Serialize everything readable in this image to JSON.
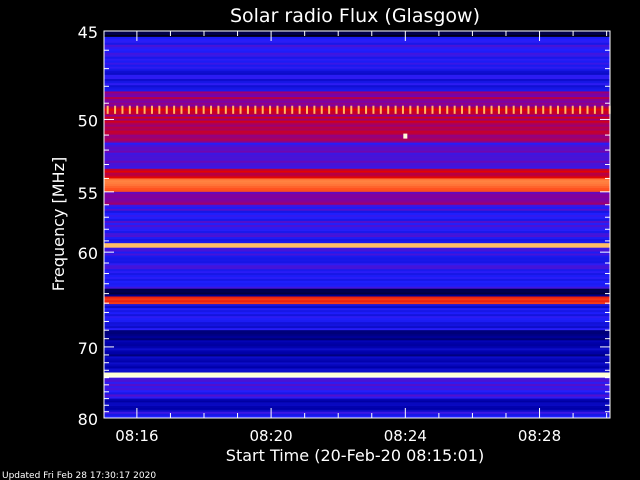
{
  "chart_data": {
    "type": "heatmap",
    "title": "Solar radio Flux (Glasgow)",
    "xlabel": "Start Time (20-Feb-20 08:15:01)",
    "ylabel": "Frequency [MHz]",
    "x_ticks": [
      "08:16",
      "08:20",
      "08:24",
      "08:28"
    ],
    "x_tick_minutes": [
      16,
      20,
      24,
      28
    ],
    "x_range_minutes": [
      15.02,
      30.1
    ],
    "y_ticks": [
      45,
      50,
      55,
      60,
      70,
      80
    ],
    "y_range": [
      45,
      80
    ],
    "y_scale": "reciprocal",
    "colormap": [
      "#000010",
      "#0000a8",
      "#2020ff",
      "#8000a0",
      "#e00000",
      "#ff5020",
      "#ffff90",
      "#ffffff"
    ],
    "bands": [
      {
        "f_start": 45.0,
        "f_end": 45.3,
        "level": 0.05
      },
      {
        "f_start": 45.3,
        "f_end": 47.0,
        "level": 0.3
      },
      {
        "f_start": 47.0,
        "f_end": 48.3,
        "level": 0.25
      },
      {
        "f_start": 48.3,
        "f_end": 49.2,
        "level": 0.45
      },
      {
        "f_start": 49.2,
        "f_end": 49.7,
        "level": 0.55
      },
      {
        "f_start": 49.7,
        "f_end": 51.5,
        "level": 0.5
      },
      {
        "f_start": 51.5,
        "f_end": 53.3,
        "level": 0.35
      },
      {
        "f_start": 53.3,
        "f_end": 54.0,
        "level": 0.55
      },
      {
        "f_start": 54.0,
        "f_end": 55.0,
        "level": 0.7
      },
      {
        "f_start": 55.0,
        "f_end": 56.0,
        "level": 0.45
      },
      {
        "f_start": 56.0,
        "f_end": 59.2,
        "level": 0.3
      },
      {
        "f_start": 59.2,
        "f_end": 59.6,
        "level": 0.78
      },
      {
        "f_start": 59.6,
        "f_end": 63.5,
        "level": 0.3
      },
      {
        "f_start": 63.5,
        "f_end": 64.3,
        "level": 0.1
      },
      {
        "f_start": 64.3,
        "f_end": 65.1,
        "level": 0.68
      },
      {
        "f_start": 65.1,
        "f_end": 68.0,
        "level": 0.25
      },
      {
        "f_start": 68.0,
        "f_end": 73.3,
        "level": 0.15
      },
      {
        "f_start": 73.3,
        "f_end": 74.0,
        "level": 0.95
      },
      {
        "f_start": 74.0,
        "f_end": 77.0,
        "level": 0.3
      },
      {
        "f_start": 77.0,
        "f_end": 79.0,
        "level": 0.15
      },
      {
        "f_start": 79.0,
        "f_end": 80.0,
        "level": 0.3
      }
    ],
    "bursts": [
      {
        "minute": 24.0,
        "freq": 51.1,
        "level": 0.95
      }
    ],
    "periodic_pulses": {
      "freq": 49.4,
      "f_width": 0.25,
      "start_minute": 15.1,
      "end_minute": 30.1,
      "period_minutes": 0.22,
      "level": 0.8
    }
  },
  "footer": {
    "updated": "Updated Fri Feb 28 17:30:17 2020"
  }
}
